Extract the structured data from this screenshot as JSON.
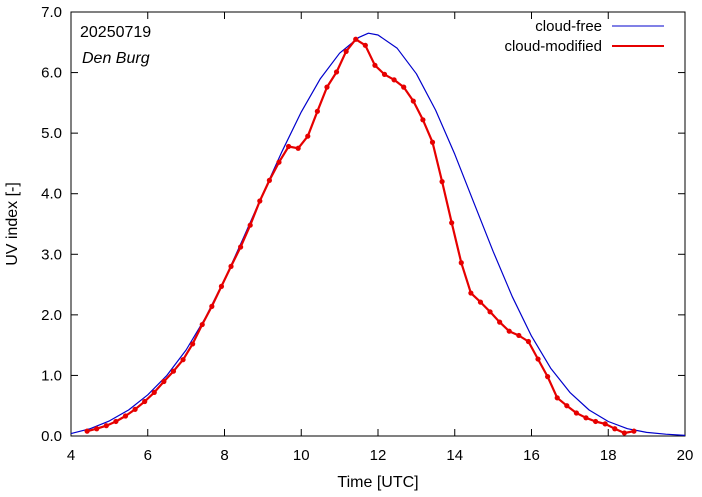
{
  "chart_data": {
    "type": "line",
    "date_label": "20250719",
    "location_label": "Den Burg",
    "xlabel": "Time  [UTC]",
    "ylabel": "UV index  [-]",
    "xlim": [
      4,
      20
    ],
    "ylim": [
      0,
      7
    ],
    "x_ticks": [
      "4",
      "6",
      "8",
      "10",
      "12",
      "14",
      "16",
      "18",
      "20"
    ],
    "y_ticks": [
      "0.0",
      "1.0",
      "2.0",
      "3.0",
      "4.0",
      "5.0",
      "6.0",
      "7.0"
    ],
    "legend_position": "top-right",
    "series": [
      {
        "name": "cloud-free",
        "color": "#0000cc",
        "marker": "none",
        "x": [
          4.0,
          4.5,
          5.0,
          5.5,
          6.0,
          6.5,
          7.0,
          7.5,
          8.0,
          8.5,
          9.0,
          9.5,
          10.0,
          10.5,
          11.0,
          11.5,
          11.75,
          12.0,
          12.5,
          13.0,
          13.5,
          14.0,
          14.5,
          15.0,
          15.5,
          16.0,
          16.5,
          17.0,
          17.5,
          18.0,
          18.5,
          19.0,
          19.5,
          20.0
        ],
        "y": [
          0.04,
          0.12,
          0.25,
          0.43,
          0.68,
          1.0,
          1.42,
          1.95,
          2.58,
          3.28,
          4.0,
          4.7,
          5.35,
          5.9,
          6.32,
          6.58,
          6.65,
          6.62,
          6.4,
          5.98,
          5.38,
          4.65,
          3.85,
          3.05,
          2.3,
          1.65,
          1.12,
          0.72,
          0.43,
          0.24,
          0.12,
          0.06,
          0.03,
          0.01
        ]
      },
      {
        "name": "cloud-modified",
        "color": "#e60000",
        "marker": "circle",
        "x": [
          4.42,
          4.67,
          4.92,
          5.17,
          5.42,
          5.67,
          5.92,
          6.17,
          6.42,
          6.67,
          6.92,
          7.17,
          7.42,
          7.67,
          7.92,
          8.17,
          8.42,
          8.67,
          8.92,
          9.17,
          9.42,
          9.67,
          9.92,
          10.17,
          10.42,
          10.67,
          10.92,
          11.17,
          11.42,
          11.67,
          11.92,
          12.17,
          12.42,
          12.67,
          12.92,
          13.17,
          13.42,
          13.67,
          13.92,
          14.17,
          14.42,
          14.67,
          14.92,
          15.17,
          15.42,
          15.67,
          15.92,
          16.17,
          16.42,
          16.67,
          16.92,
          17.17,
          17.42,
          17.67,
          17.92,
          18.17,
          18.42,
          18.67
        ],
        "y": [
          0.08,
          0.12,
          0.17,
          0.24,
          0.33,
          0.44,
          0.57,
          0.72,
          0.9,
          1.07,
          1.26,
          1.52,
          1.84,
          2.14,
          2.47,
          2.8,
          3.12,
          3.48,
          3.88,
          4.22,
          4.52,
          4.78,
          4.75,
          4.95,
          5.36,
          5.76,
          6.01,
          6.35,
          6.55,
          6.45,
          6.12,
          5.97,
          5.88,
          5.76,
          5.53,
          5.22,
          4.85,
          4.2,
          3.52,
          2.86,
          2.36,
          2.21,
          2.05,
          1.88,
          1.73,
          1.66,
          1.56,
          1.27,
          0.98,
          0.63,
          0.5,
          0.38,
          0.3,
          0.24,
          0.2,
          0.12,
          0.05,
          0.08
        ]
      }
    ]
  }
}
